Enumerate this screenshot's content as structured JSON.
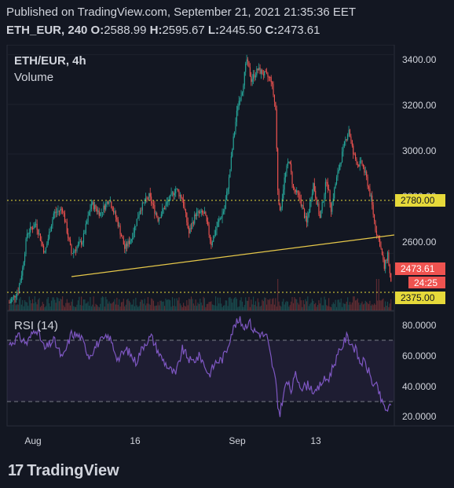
{
  "header": {
    "published": "Published on TradingView.com, September 21, 2021 21:35:36 EET",
    "symbol_interval": "ETH_EUR, 240",
    "o_label": "O:",
    "o_value": "2588.99",
    "h_label": "H:",
    "h_value": "2595.67",
    "l_label": "L:",
    "l_value": "2445.50",
    "c_label": "C:",
    "c_value": "2473.61"
  },
  "legend": {
    "title": "ETH/EUR, 4h",
    "volume": "Volume",
    "rsi": "RSI (14)"
  },
  "colors": {
    "background": "#131722",
    "up": "#26a69a",
    "down": "#ef5350",
    "rsi": "#7e57c2",
    "trendline": "#e6c84a",
    "hline": "#e6d93a"
  },
  "chart_data": [
    {
      "type": "candlestick",
      "title": "ETH/EUR, 4h",
      "x_ticks": [
        "Aug",
        "16",
        "Sep",
        "13"
      ],
      "y_ticks": [
        "3400.00",
        "3200.00",
        "3000.00",
        "2800.00",
        "2600.00"
      ],
      "ylim": [
        2370,
        3440
      ],
      "anchors": [
        [
          0,
          2400
        ],
        [
          8,
          2450
        ],
        [
          12,
          2540
        ],
        [
          16,
          2680
        ],
        [
          24,
          2720
        ],
        [
          32,
          2600
        ],
        [
          40,
          2760
        ],
        [
          48,
          2780
        ],
        [
          56,
          2600
        ],
        [
          66,
          2650
        ],
        [
          74,
          2800
        ],
        [
          82,
          2760
        ],
        [
          90,
          2820
        ],
        [
          98,
          2720
        ],
        [
          104,
          2620
        ],
        [
          110,
          2660
        ],
        [
          118,
          2780
        ],
        [
          126,
          2830
        ],
        [
          134,
          2740
        ],
        [
          142,
          2800
        ],
        [
          150,
          2860
        ],
        [
          156,
          2820
        ],
        [
          162,
          2680
        ],
        [
          168,
          2760
        ],
        [
          176,
          2760
        ],
        [
          182,
          2640
        ],
        [
          188,
          2720
        ],
        [
          194,
          2780
        ],
        [
          198,
          2900
        ],
        [
          202,
          3060
        ],
        [
          206,
          3200
        ],
        [
          210,
          3260
        ],
        [
          214,
          3380
        ],
        [
          218,
          3300
        ],
        [
          224,
          3340
        ],
        [
          230,
          3320
        ],
        [
          236,
          3300
        ],
        [
          240,
          3180
        ],
        [
          242,
          2860
        ],
        [
          244,
          2760
        ],
        [
          248,
          2900
        ],
        [
          252,
          2980
        ],
        [
          256,
          2860
        ],
        [
          262,
          2820
        ],
        [
          268,
          2720
        ],
        [
          274,
          2880
        ],
        [
          280,
          2740
        ],
        [
          286,
          2900
        ],
        [
          290,
          2780
        ],
        [
          294,
          2880
        ],
        [
          298,
          2960
        ],
        [
          302,
          3040
        ],
        [
          306,
          3100
        ],
        [
          310,
          3000
        ],
        [
          314,
          2960
        ],
        [
          318,
          2960
        ],
        [
          322,
          2900
        ],
        [
          326,
          2820
        ],
        [
          330,
          2700
        ],
        [
          334,
          2640
        ],
        [
          338,
          2540
        ],
        [
          341,
          2600
        ],
        [
          344,
          2474
        ]
      ],
      "last_price": "2473.61",
      "countdown": "24:25",
      "level_2780": "2780.00",
      "level_2375": "2375.00",
      "trendline": {
        "start": [
          18,
          2460
        ],
        "end": [
          370,
          2640
        ]
      },
      "volume_spikes": [
        242,
        331,
        333
      ]
    },
    {
      "type": "line",
      "title": "RSI (14)",
      "series_name": "RSI (14)",
      "y_ticks": [
        "80.0000",
        "60.0000",
        "40.0000",
        "20.0000"
      ],
      "ylim": [
        14,
        86
      ],
      "overbought": 70,
      "oversold": 30,
      "anchors": [
        [
          0,
          65
        ],
        [
          8,
          70
        ],
        [
          16,
          66
        ],
        [
          24,
          76
        ],
        [
          32,
          62
        ],
        [
          40,
          68
        ],
        [
          48,
          56
        ],
        [
          56,
          72
        ],
        [
          64,
          70
        ],
        [
          72,
          58
        ],
        [
          80,
          66
        ],
        [
          90,
          70
        ],
        [
          98,
          56
        ],
        [
          106,
          62
        ],
        [
          114,
          54
        ],
        [
          122,
          66
        ],
        [
          128,
          70
        ],
        [
          136,
          58
        ],
        [
          144,
          50
        ],
        [
          150,
          46
        ],
        [
          156,
          62
        ],
        [
          164,
          54
        ],
        [
          172,
          58
        ],
        [
          180,
          46
        ],
        [
          186,
          54
        ],
        [
          192,
          56
        ],
        [
          196,
          62
        ],
        [
          200,
          72
        ],
        [
          204,
          78
        ],
        [
          208,
          80
        ],
        [
          212,
          76
        ],
        [
          216,
          80
        ],
        [
          220,
          74
        ],
        [
          226,
          72
        ],
        [
          232,
          70
        ],
        [
          236,
          56
        ],
        [
          240,
          42
        ],
        [
          242,
          26
        ],
        [
          244,
          22
        ],
        [
          246,
          30
        ],
        [
          250,
          42
        ],
        [
          254,
          36
        ],
        [
          258,
          46
        ],
        [
          264,
          38
        ],
        [
          270,
          40
        ],
        [
          276,
          34
        ],
        [
          282,
          42
        ],
        [
          288,
          44
        ],
        [
          292,
          52
        ],
        [
          296,
          58
        ],
        [
          300,
          64
        ],
        [
          304,
          70
        ],
        [
          308,
          66
        ],
        [
          312,
          62
        ],
        [
          316,
          54
        ],
        [
          320,
          54
        ],
        [
          324,
          48
        ],
        [
          328,
          40
        ],
        [
          332,
          38
        ],
        [
          336,
          28
        ],
        [
          340,
          24
        ],
        [
          344,
          26
        ],
        [
          348,
          27
        ]
      ]
    }
  ]
}
